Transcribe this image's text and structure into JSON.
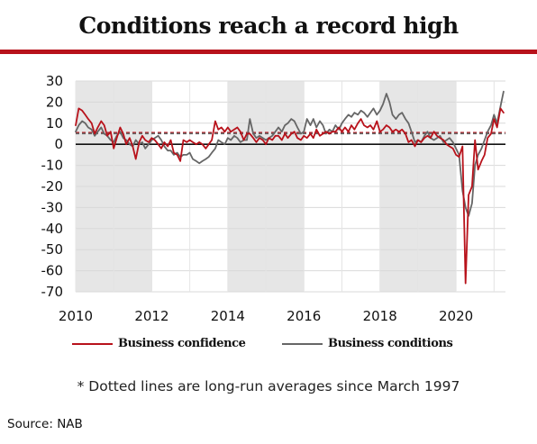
{
  "header": {
    "title": "Conditions reach a record high"
  },
  "legend": {
    "confidence_label": "Business confidence",
    "conditions_label": "Business conditions"
  },
  "footnote": "* Dotted lines are long-run averages since March 1997",
  "source": "Source: NAB",
  "colors": {
    "confidence": "#b8121b",
    "conditions": "#666666",
    "shade": "#e6e6e6",
    "rule": "#b8121b"
  },
  "chart_data": {
    "type": "line",
    "xlim": [
      2010,
      2021.3
    ],
    "ylim": [
      -70,
      30
    ],
    "x_ticks": [
      "2010",
      "2012",
      "2014",
      "2016",
      "2018",
      "2020"
    ],
    "y_ticks": [
      "30",
      "20",
      "10",
      "0",
      "-10",
      "-20",
      "-30",
      "-40",
      "-50",
      "-60",
      "-70"
    ],
    "shaded_periods": [
      [
        2010,
        2012
      ],
      [
        2014,
        2016
      ],
      [
        2018,
        2020
      ]
    ],
    "series": [
      {
        "name": "Business confidence",
        "color": "#b8121b",
        "points": [
          [
            2010.0,
            9
          ],
          [
            2010.08,
            17
          ],
          [
            2010.17,
            16
          ],
          [
            2010.25,
            14
          ],
          [
            2010.33,
            12
          ],
          [
            2010.42,
            10
          ],
          [
            2010.5,
            5
          ],
          [
            2010.58,
            8
          ],
          [
            2010.67,
            11
          ],
          [
            2010.75,
            9
          ],
          [
            2010.83,
            4
          ],
          [
            2010.92,
            6
          ],
          [
            2011.0,
            -2
          ],
          [
            2011.08,
            3
          ],
          [
            2011.17,
            8
          ],
          [
            2011.25,
            5
          ],
          [
            2011.33,
            0
          ],
          [
            2011.42,
            3
          ],
          [
            2011.5,
            -1
          ],
          [
            2011.58,
            -7
          ],
          [
            2011.67,
            1
          ],
          [
            2011.75,
            4
          ],
          [
            2011.83,
            2
          ],
          [
            2011.92,
            1
          ],
          [
            2012.0,
            3
          ],
          [
            2012.08,
            2
          ],
          [
            2012.17,
            0
          ],
          [
            2012.25,
            -2
          ],
          [
            2012.33,
            1
          ],
          [
            2012.42,
            -1
          ],
          [
            2012.5,
            2
          ],
          [
            2012.58,
            -4
          ],
          [
            2012.67,
            -5
          ],
          [
            2012.75,
            -8
          ],
          [
            2012.83,
            2
          ],
          [
            2012.92,
            1
          ],
          [
            2013.0,
            2
          ],
          [
            2013.08,
            1
          ],
          [
            2013.17,
            0
          ],
          [
            2013.25,
            1
          ],
          [
            2013.33,
            0
          ],
          [
            2013.42,
            -2
          ],
          [
            2013.5,
            0
          ],
          [
            2013.58,
            2
          ],
          [
            2013.67,
            11
          ],
          [
            2013.75,
            7
          ],
          [
            2013.83,
            8
          ],
          [
            2013.92,
            6
          ],
          [
            2014.0,
            8
          ],
          [
            2014.08,
            6
          ],
          [
            2014.17,
            7
          ],
          [
            2014.25,
            8
          ],
          [
            2014.33,
            6
          ],
          [
            2014.42,
            2
          ],
          [
            2014.5,
            5
          ],
          [
            2014.58,
            5
          ],
          [
            2014.67,
            3
          ],
          [
            2014.75,
            1
          ],
          [
            2014.83,
            3
          ],
          [
            2014.92,
            2
          ],
          [
            2015.0,
            0
          ],
          [
            2015.08,
            3
          ],
          [
            2015.17,
            2
          ],
          [
            2015.25,
            4
          ],
          [
            2015.33,
            4
          ],
          [
            2015.42,
            2
          ],
          [
            2015.5,
            5
          ],
          [
            2015.58,
            3
          ],
          [
            2015.67,
            5
          ],
          [
            2015.75,
            6
          ],
          [
            2015.83,
            3
          ],
          [
            2015.92,
            2
          ],
          [
            2016.0,
            4
          ],
          [
            2016.08,
            3
          ],
          [
            2016.17,
            5
          ],
          [
            2016.25,
            3
          ],
          [
            2016.33,
            7
          ],
          [
            2016.42,
            4
          ],
          [
            2016.5,
            5
          ],
          [
            2016.58,
            6
          ],
          [
            2016.67,
            5
          ],
          [
            2016.75,
            6
          ],
          [
            2016.83,
            6
          ],
          [
            2016.92,
            8
          ],
          [
            2017.0,
            6
          ],
          [
            2017.08,
            8
          ],
          [
            2017.17,
            6
          ],
          [
            2017.25,
            9
          ],
          [
            2017.33,
            7
          ],
          [
            2017.42,
            10
          ],
          [
            2017.5,
            12
          ],
          [
            2017.58,
            9
          ],
          [
            2017.67,
            8
          ],
          [
            2017.75,
            9
          ],
          [
            2017.83,
            7
          ],
          [
            2017.92,
            11
          ],
          [
            2018.0,
            6
          ],
          [
            2018.08,
            7
          ],
          [
            2018.17,
            9
          ],
          [
            2018.25,
            8
          ],
          [
            2018.33,
            6
          ],
          [
            2018.42,
            7
          ],
          [
            2018.5,
            6
          ],
          [
            2018.58,
            7
          ],
          [
            2018.67,
            5
          ],
          [
            2018.75,
            1
          ],
          [
            2018.83,
            2
          ],
          [
            2018.92,
            -1
          ],
          [
            2019.0,
            2
          ],
          [
            2019.08,
            1
          ],
          [
            2019.17,
            3
          ],
          [
            2019.25,
            4
          ],
          [
            2019.33,
            3
          ],
          [
            2019.42,
            6
          ],
          [
            2019.5,
            4
          ],
          [
            2019.58,
            3
          ],
          [
            2019.67,
            2
          ],
          [
            2019.75,
            0
          ],
          [
            2019.83,
            -1
          ],
          [
            2019.92,
            -2
          ],
          [
            2020.0,
            -5
          ],
          [
            2020.08,
            -6
          ],
          [
            2020.17,
            -1
          ],
          [
            2020.25,
            -66
          ],
          [
            2020.33,
            -24
          ],
          [
            2020.42,
            -20
          ],
          [
            2020.5,
            2
          ],
          [
            2020.58,
            -12
          ],
          [
            2020.67,
            -8
          ],
          [
            2020.75,
            -5
          ],
          [
            2020.83,
            3
          ],
          [
            2020.92,
            5
          ],
          [
            2021.0,
            12
          ],
          [
            2021.08,
            8
          ],
          [
            2021.17,
            17
          ],
          [
            2021.25,
            15
          ]
        ]
      },
      {
        "name": "Business conditions",
        "color": "#666666",
        "points": [
          [
            2010.0,
            6
          ],
          [
            2010.08,
            9
          ],
          [
            2010.17,
            11
          ],
          [
            2010.25,
            10
          ],
          [
            2010.33,
            8
          ],
          [
            2010.42,
            7
          ],
          [
            2010.5,
            4
          ],
          [
            2010.58,
            6
          ],
          [
            2010.67,
            8
          ],
          [
            2010.75,
            5
          ],
          [
            2010.83,
            4
          ],
          [
            2010.92,
            2
          ],
          [
            2011.0,
            1
          ],
          [
            2011.08,
            4
          ],
          [
            2011.17,
            6
          ],
          [
            2011.25,
            3
          ],
          [
            2011.33,
            2
          ],
          [
            2011.42,
            0
          ],
          [
            2011.5,
            -1
          ],
          [
            2011.58,
            2
          ],
          [
            2011.67,
            0
          ],
          [
            2011.75,
            1
          ],
          [
            2011.83,
            -2
          ],
          [
            2011.92,
            0
          ],
          [
            2012.0,
            2
          ],
          [
            2012.08,
            3
          ],
          [
            2012.17,
            4
          ],
          [
            2012.25,
            2
          ],
          [
            2012.33,
            -1
          ],
          [
            2012.42,
            -3
          ],
          [
            2012.5,
            -3
          ],
          [
            2012.58,
            -5
          ],
          [
            2012.67,
            -4
          ],
          [
            2012.75,
            -6
          ],
          [
            2012.83,
            -5
          ],
          [
            2012.92,
            -5
          ],
          [
            2013.0,
            -4
          ],
          [
            2013.08,
            -7
          ],
          [
            2013.17,
            -8
          ],
          [
            2013.25,
            -9
          ],
          [
            2013.33,
            -8
          ],
          [
            2013.42,
            -7
          ],
          [
            2013.5,
            -6
          ],
          [
            2013.58,
            -4
          ],
          [
            2013.67,
            -2
          ],
          [
            2013.75,
            2
          ],
          [
            2013.83,
            1
          ],
          [
            2013.92,
            0
          ],
          [
            2014.0,
            3
          ],
          [
            2014.08,
            2
          ],
          [
            2014.17,
            4
          ],
          [
            2014.25,
            3
          ],
          [
            2014.33,
            1
          ],
          [
            2014.42,
            2
          ],
          [
            2014.5,
            2
          ],
          [
            2014.58,
            12
          ],
          [
            2014.67,
            5
          ],
          [
            2014.75,
            3
          ],
          [
            2014.83,
            4
          ],
          [
            2014.92,
            3
          ],
          [
            2015.0,
            2
          ],
          [
            2015.08,
            3
          ],
          [
            2015.17,
            4
          ],
          [
            2015.25,
            6
          ],
          [
            2015.33,
            8
          ],
          [
            2015.42,
            6
          ],
          [
            2015.5,
            9
          ],
          [
            2015.58,
            10
          ],
          [
            2015.67,
            12
          ],
          [
            2015.75,
            11
          ],
          [
            2015.83,
            8
          ],
          [
            2015.92,
            5
          ],
          [
            2016.0,
            6
          ],
          [
            2016.08,
            12
          ],
          [
            2016.17,
            9
          ],
          [
            2016.25,
            12
          ],
          [
            2016.33,
            8
          ],
          [
            2016.42,
            11
          ],
          [
            2016.5,
            9
          ],
          [
            2016.58,
            5
          ],
          [
            2016.67,
            7
          ],
          [
            2016.75,
            6
          ],
          [
            2016.83,
            9
          ],
          [
            2016.92,
            7
          ],
          [
            2017.0,
            10
          ],
          [
            2017.08,
            12
          ],
          [
            2017.17,
            14
          ],
          [
            2017.25,
            13
          ],
          [
            2017.33,
            15
          ],
          [
            2017.42,
            14
          ],
          [
            2017.5,
            16
          ],
          [
            2017.58,
            15
          ],
          [
            2017.67,
            13
          ],
          [
            2017.75,
            15
          ],
          [
            2017.83,
            17
          ],
          [
            2017.92,
            14
          ],
          [
            2018.0,
            16
          ],
          [
            2018.08,
            19
          ],
          [
            2018.17,
            24
          ],
          [
            2018.25,
            20
          ],
          [
            2018.33,
            14
          ],
          [
            2018.42,
            12
          ],
          [
            2018.5,
            14
          ],
          [
            2018.58,
            15
          ],
          [
            2018.67,
            12
          ],
          [
            2018.75,
            10
          ],
          [
            2018.83,
            6
          ],
          [
            2018.92,
            1
          ],
          [
            2019.0,
            2
          ],
          [
            2019.08,
            1
          ],
          [
            2019.17,
            4
          ],
          [
            2019.25,
            6
          ],
          [
            2019.33,
            3
          ],
          [
            2019.42,
            2
          ],
          [
            2019.5,
            3
          ],
          [
            2019.58,
            4
          ],
          [
            2019.67,
            1
          ],
          [
            2019.75,
            2
          ],
          [
            2019.83,
            3
          ],
          [
            2019.92,
            1
          ],
          [
            2020.0,
            -2
          ],
          [
            2020.08,
            -5
          ],
          [
            2020.17,
            -22
          ],
          [
            2020.25,
            -30
          ],
          [
            2020.33,
            -34
          ],
          [
            2020.42,
            -28
          ],
          [
            2020.5,
            -10
          ],
          [
            2020.58,
            -5
          ],
          [
            2020.67,
            -2
          ],
          [
            2020.75,
            2
          ],
          [
            2020.83,
            6
          ],
          [
            2020.92,
            9
          ],
          [
            2021.0,
            14
          ],
          [
            2021.08,
            10
          ],
          [
            2021.17,
            18
          ],
          [
            2021.25,
            25
          ]
        ]
      }
    ],
    "long_run_averages": [
      {
        "series": "Business confidence",
        "value": 5.5,
        "style": "dotted",
        "color": "#b8121b"
      },
      {
        "series": "Business conditions",
        "value": 5.1,
        "style": "dotted",
        "color": "#666666"
      }
    ]
  }
}
